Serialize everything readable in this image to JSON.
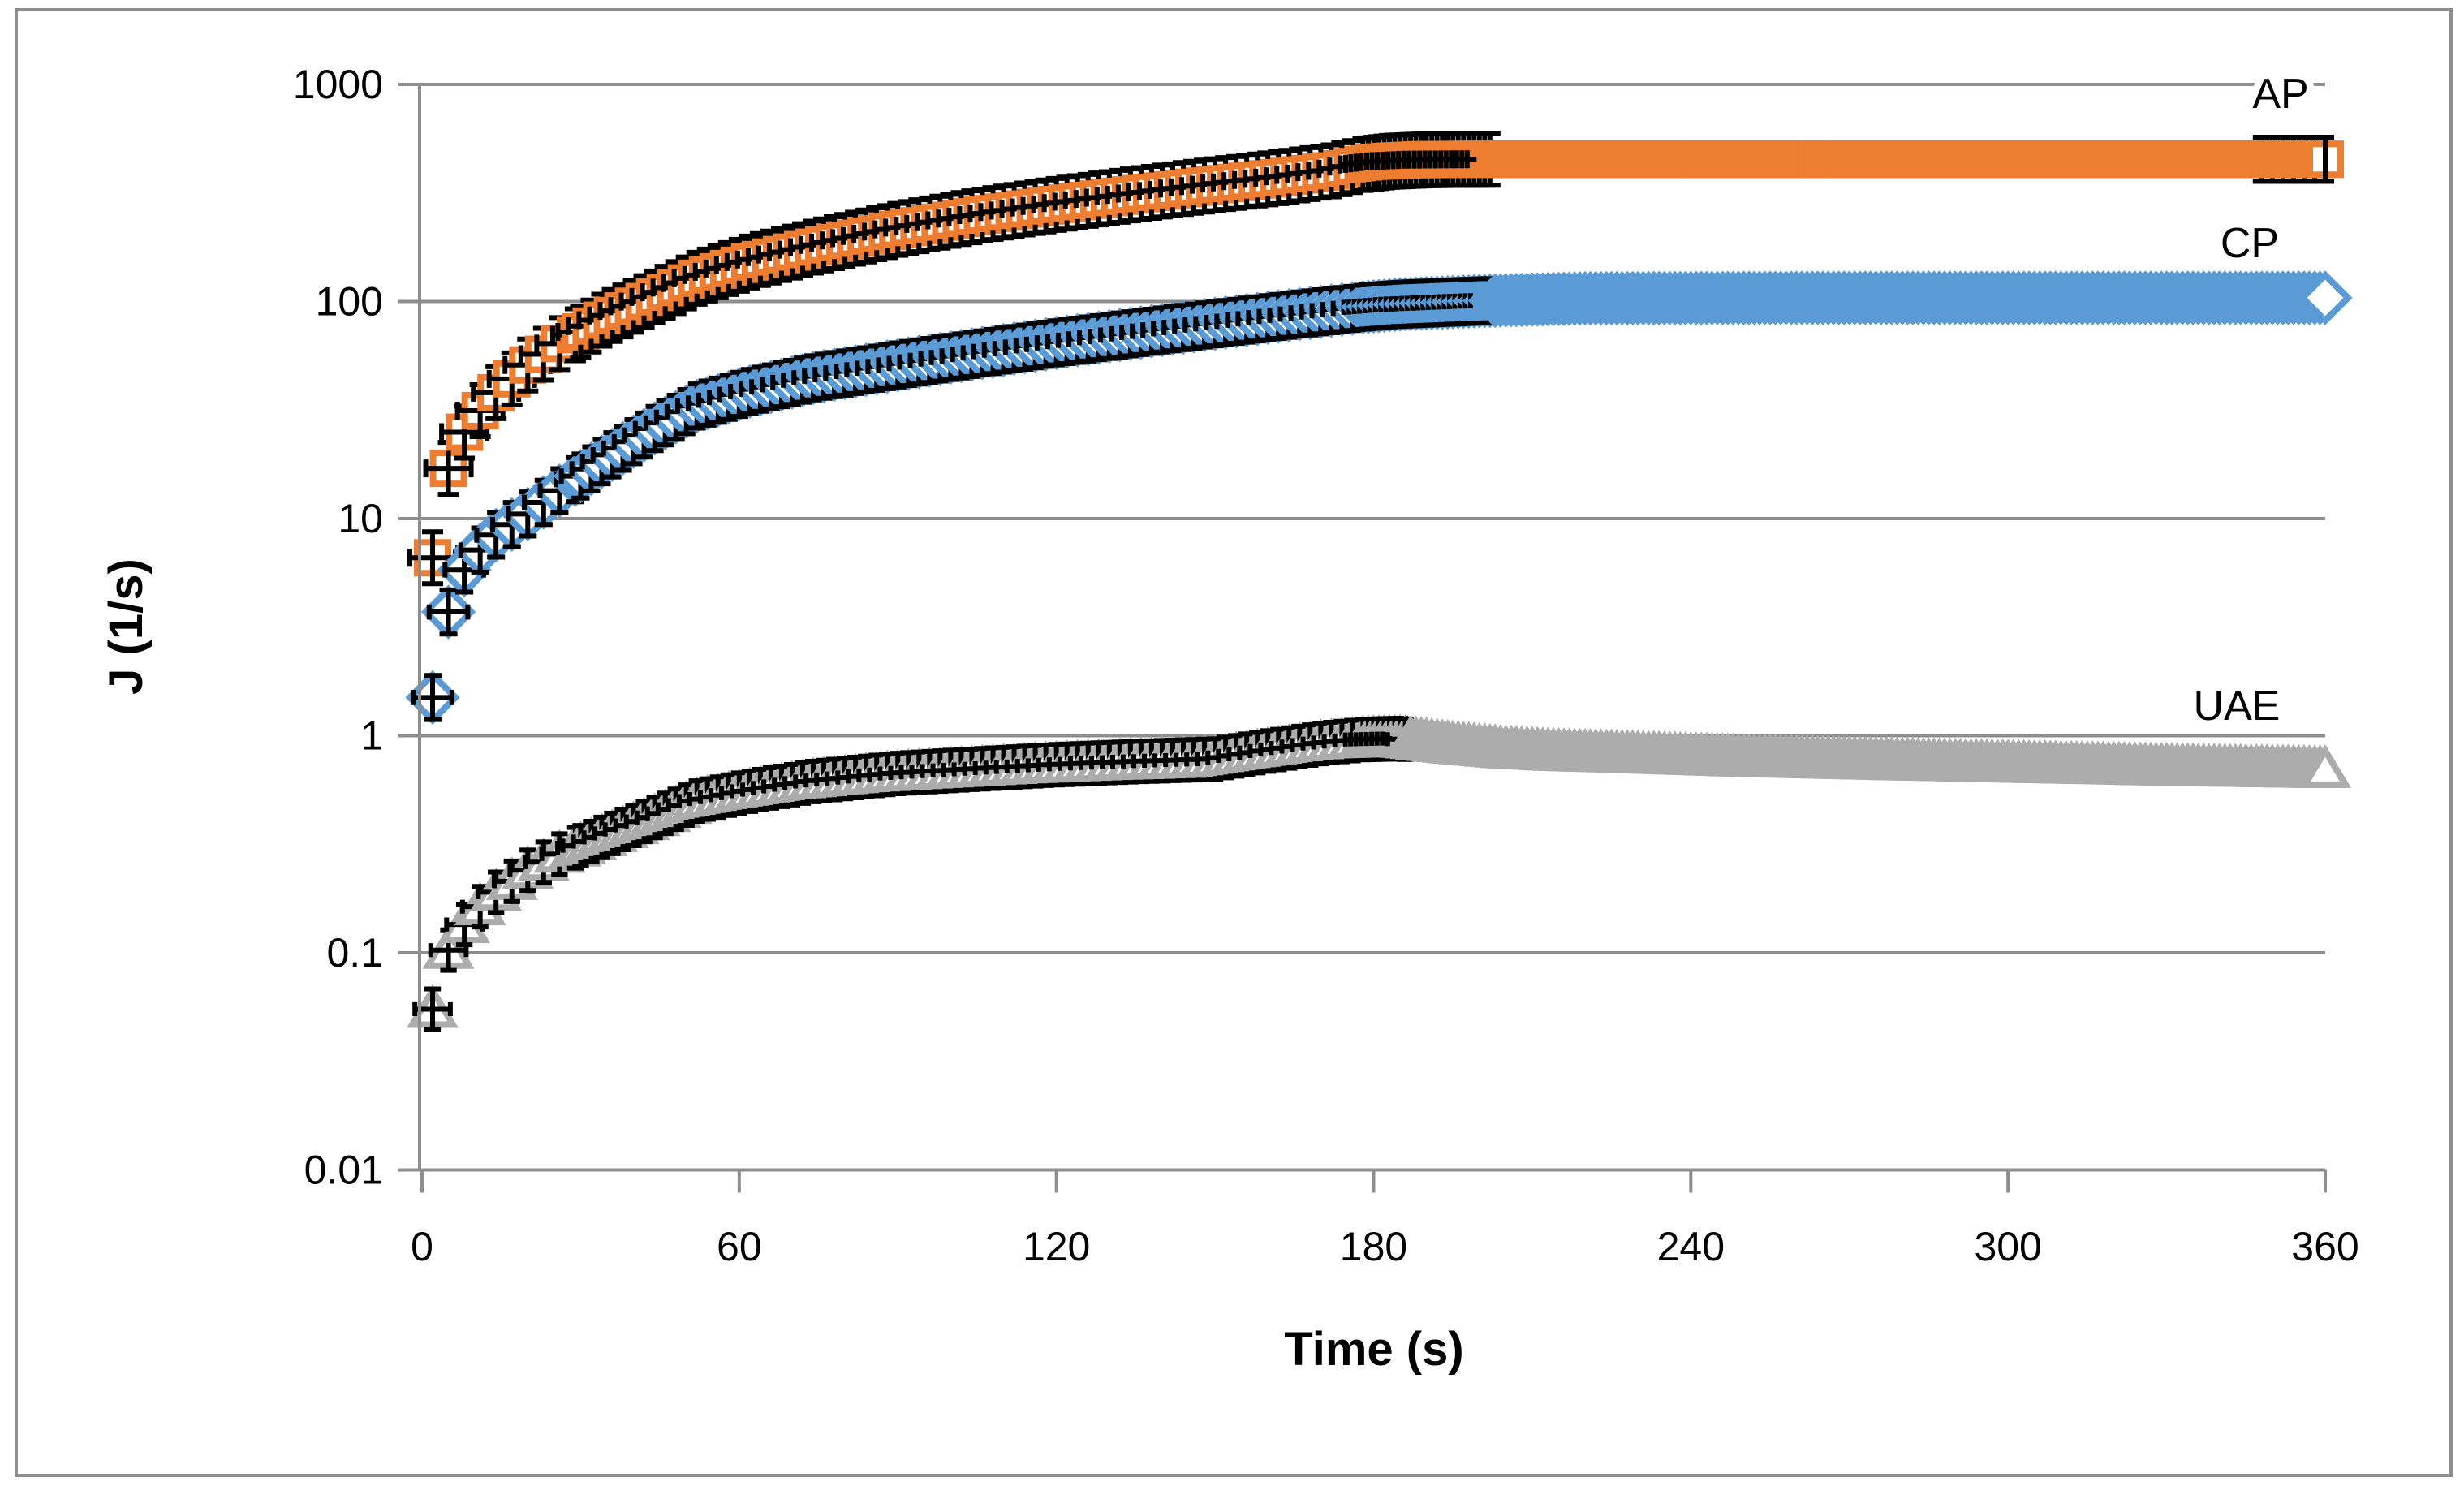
{
  "chart_data": {
    "type": "scatter",
    "title": "",
    "xlabel": "Time (s)",
    "ylabel": "J (1/s)",
    "x_scale": "linear",
    "y_scale": "log",
    "xlim": [
      0,
      360
    ],
    "ylim": [
      0.01,
      1000
    ],
    "x_ticks": [
      "0",
      "60",
      "120",
      "180",
      "240",
      "300",
      "360"
    ],
    "y_ticks": [
      "1000",
      "100",
      "10",
      "1",
      "0.1",
      "0.01"
    ],
    "grid": "horizontal-decades-only",
    "legend_position": "inline-labels-right",
    "colors": {
      "axis": "#8e8e8e",
      "gridline": "#8e8e8e",
      "border": "#8e8e8e",
      "error_bar": "#000000",
      "tick_text": "#000000"
    },
    "series": [
      {
        "name": "AP",
        "marker": "square",
        "color": "#ED7D31",
        "label_x": 2810,
        "label_y": 133,
        "points": [
          [
            2,
            6.6
          ],
          [
            4,
            14.5
          ],
          [
            6,
            20
          ],
          [
            8,
            25
          ],
          [
            10,
            29.5
          ],
          [
            14,
            38
          ],
          [
            20,
            51
          ],
          [
            26,
            64
          ],
          [
            34,
            82
          ],
          [
            44,
            105
          ],
          [
            52,
            128
          ],
          [
            62,
            152
          ],
          [
            74,
            178
          ],
          [
            90,
            215
          ],
          [
            105,
            248
          ],
          [
            120,
            280
          ],
          [
            135,
            312
          ],
          [
            150,
            345
          ],
          [
            162,
            372
          ],
          [
            172,
            400
          ],
          [
            178,
            428
          ],
          [
            183,
            442
          ],
          [
            190,
            450
          ],
          [
            200,
            452
          ],
          [
            240,
            452
          ],
          [
            300,
            452
          ],
          [
            360,
            452
          ]
        ]
      },
      {
        "name": "CP",
        "marker": "diamond",
        "color": "#5B9BD5",
        "label_x": 2772,
        "label_y": 317,
        "points": [
          [
            2,
            1.5
          ],
          [
            4,
            3.0
          ],
          [
            6,
            4.6
          ],
          [
            8,
            5.8
          ],
          [
            10,
            6.8
          ],
          [
            14,
            8.4
          ],
          [
            20,
            10.5
          ],
          [
            27,
            14
          ],
          [
            35,
            19
          ],
          [
            44,
            26
          ],
          [
            52,
            33
          ],
          [
            62,
            38.5
          ],
          [
            74,
            44.5
          ],
          [
            90,
            51
          ],
          [
            105,
            57.5
          ],
          [
            120,
            64.5
          ],
          [
            135,
            71.5
          ],
          [
            150,
            79
          ],
          [
            165,
            87
          ],
          [
            178,
            94
          ],
          [
            185,
            97
          ],
          [
            200,
            100.5
          ],
          [
            220,
            103.5
          ],
          [
            260,
            104
          ],
          [
            310,
            104
          ],
          [
            360,
            104
          ]
        ]
      },
      {
        "name": "UAE",
        "marker": "triangle",
        "color": "#ACACAC",
        "label_x": 2756,
        "label_y": 887,
        "points": [
          [
            2,
            0.055
          ],
          [
            4,
            0.092
          ],
          [
            6,
            0.115
          ],
          [
            8,
            0.135
          ],
          [
            10,
            0.155
          ],
          [
            14,
            0.19
          ],
          [
            20,
            0.24
          ],
          [
            26,
            0.285
          ],
          [
            34,
            0.34
          ],
          [
            44,
            0.42
          ],
          [
            52,
            0.5
          ],
          [
            62,
            0.555
          ],
          [
            74,
            0.615
          ],
          [
            90,
            0.67
          ],
          [
            104,
            0.7
          ],
          [
            120,
            0.735
          ],
          [
            135,
            0.76
          ],
          [
            150,
            0.78
          ],
          [
            160,
            0.85
          ],
          [
            170,
            0.92
          ],
          [
            178,
            0.96
          ],
          [
            185,
            0.97
          ],
          [
            195,
            0.91
          ],
          [
            205,
            0.865
          ],
          [
            215,
            0.84
          ],
          [
            230,
            0.82
          ],
          [
            250,
            0.79
          ],
          [
            280,
            0.76
          ],
          [
            310,
            0.735
          ],
          [
            335,
            0.715
          ],
          [
            360,
            0.7
          ]
        ]
      }
    ],
    "sampling_note": "markers plotted every ~2-3 s up to 180 s, every ~1 s from 180-360 s; black bars are error bars"
  }
}
